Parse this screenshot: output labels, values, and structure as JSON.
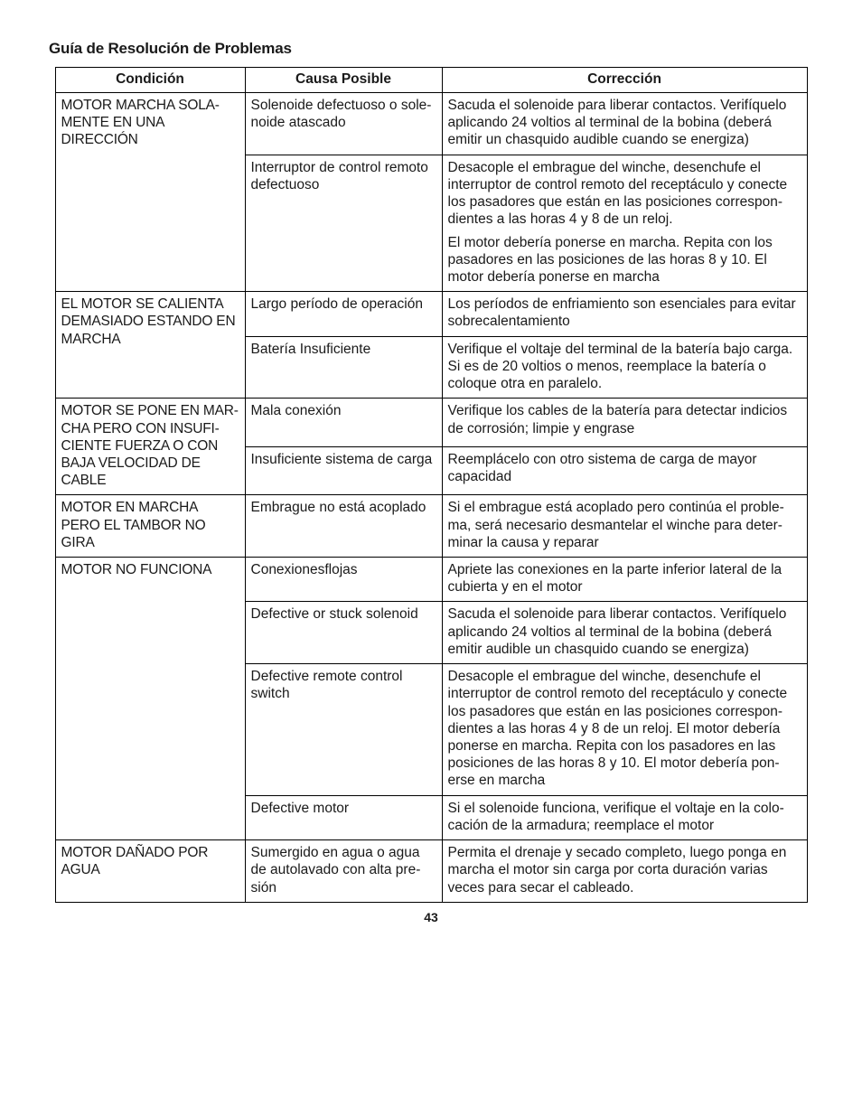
{
  "title": "Guía de Resolución de Problemas",
  "headers": {
    "c1": "Condición",
    "c2": "Causa Posible",
    "c3": "Corrección"
  },
  "page_number": "43",
  "t": {
    "r0_cond": "MOTOR MARCHA SOLA-MENTE EN UNA DIRECCIÓN",
    "r0_cause": "Solenoide defectuoso o sole-noide atascado",
    "r0_fix": "Sacuda el solenoide para liberar contactos.  Verifíquelo aplicando 24 voltios al terminal de la bobina (deberá emitir un chasquido audible cuando se energiza)",
    "r1_cause": "Interruptor de control remoto defectuoso",
    "r1_fix_a": "Desacople el embrague del winche, desenchufe el interruptor de control remoto del receptáculo y conecte los pasadores que están en las posiciones correspon-dientes a las horas 4 y 8 de un reloj.",
    "r1_fix_b": "El motor debería ponerse en marcha. Repita con los pasadores en las posiciones de las horas 8 y 10.  El motor debería ponerse en marcha",
    "r2_cond": "EL MOTOR SE CALIENTA DEMASIADO ESTANDO EN MARCHA",
    "r2_cause": "Largo período de operación",
    "r2_fix": "Los períodos de enfriamiento son esenciales para evitar sobrecalentamiento",
    "r3_cause": "Batería Insuficiente",
    "r3_fix": "Verifique el voltaje del terminal de la batería bajo carga.  Si es de 20 voltios o menos, reemplace la batería o coloque otra en paralelo.",
    "r4_cond": "MOTOR SE PONE EN MAR-CHA PERO CON INSUFI-CIENTE FUERZA O CON BAJA VELOCIDAD DE CABLE",
    "r4_cause": "Mala conexión",
    "r4_fix": "Verifique los cables de la batería para detectar indicios de corrosión; limpie y engrase",
    "r5_cause": "Insuficiente sistema de carga",
    "r5_fix": "Reemplácelo con otro sistema de carga de mayor capacidad",
    "r6_cond": "MOTOR EN MARCHA PERO EL TAMBOR NO GIRA",
    "r6_cause": "Embrague no está acoplado",
    "r6_fix": "Si el embrague está acoplado pero continúa el proble-ma, será necesario desmantelar el winche para deter-minar la causa y reparar",
    "r7_cond": "MOTOR NO FUNCIONA",
    "r7_cause": "Conexionesflojas",
    "r7_fix": "Apriete las conexiones en la parte inferior lateral de la cubierta y en el motor",
    "r8_cause": "Defective or stuck solenoid",
    "r8_fix": "Sacuda el solenoide para liberar contactos.  Verifíquelo aplicando 24 voltios al terminal de la bobina (deberá emitir audible un chasquido cuando se energiza)",
    "r9_cause": "Defective remote control switch",
    "r9_fix": "Desacople el embrague del winche, desenchufe el interruptor de control remoto del receptáculo y conecte los pasadores que están en las posiciones correspon-dientes a las horas 4 y 8 de un reloj. El motor debería ponerse en marcha. Repita con los pasadores en las posiciones de las horas 8 y 10.  El motor debería pon-erse en marcha",
    "r10_cause": "Defective motor",
    "r10_fix": "Si el solenoide funciona, verifique el voltaje en la colo-cación de la armadura; reemplace el motor",
    "r11_cond": "MOTOR DAÑADO POR AGUA",
    "r11_cause": "Sumergido en agua o agua de autolavado con alta pre-sión",
    "r11_fix": "Permita el drenaje y secado completo, luego ponga en marcha el motor sin carga por corta duración varias veces para secar el cableado."
  }
}
